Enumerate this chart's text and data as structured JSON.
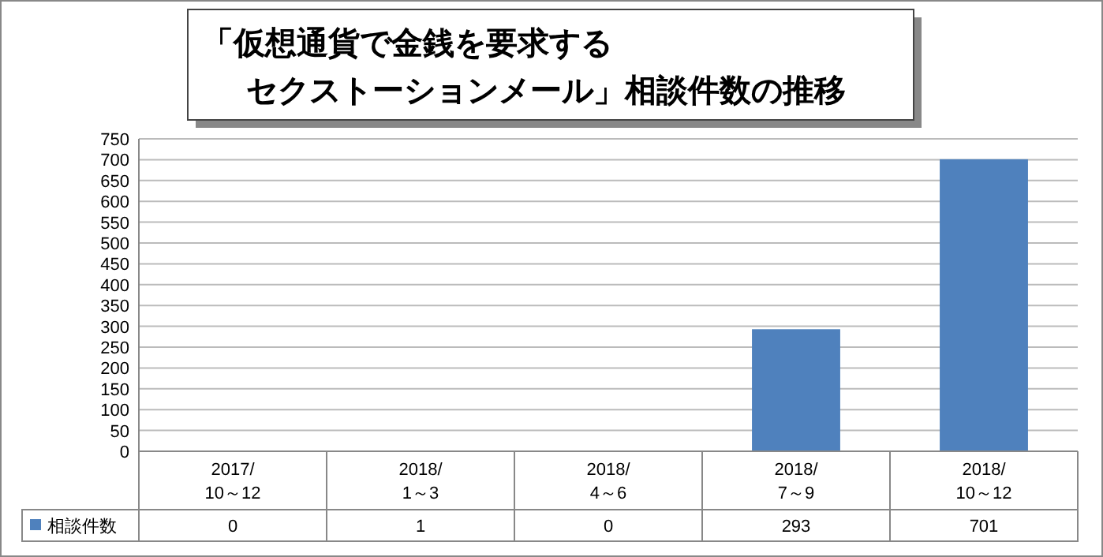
{
  "chart_data": {
    "type": "bar",
    "title": "「仮想通貨で金銭を要求する",
    "subtitle": "セクストーションメール」相談件数の推移",
    "categories": [
      "2017/\n10～12",
      "2018/\n1～3",
      "2018/\n4～6",
      "2018/\n7～9",
      "2018/\n10～12"
    ],
    "series": [
      {
        "name": "相談件数",
        "color": "#4f81bd",
        "values": [
          0,
          1,
          0,
          293,
          701
        ]
      }
    ],
    "ylim": [
      0,
      750
    ],
    "yticks": [
      0,
      50,
      100,
      150,
      200,
      250,
      300,
      350,
      400,
      450,
      500,
      550,
      600,
      650,
      700,
      750
    ],
    "grid": "y",
    "legend": "bottom",
    "data_labels": true
  }
}
